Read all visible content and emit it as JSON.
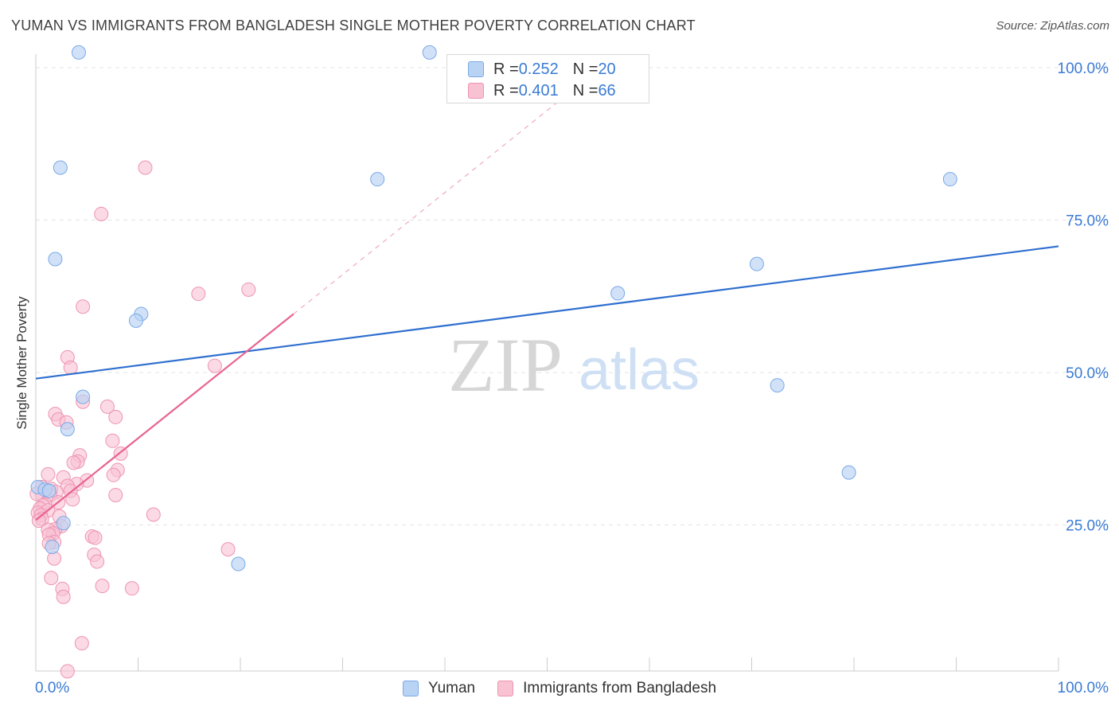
{
  "header": {
    "title": "YUMAN VS IMMIGRANTS FROM BANGLADESH SINGLE MOTHER POVERTY CORRELATION CHART",
    "source": "Source: ZipAtlas.com"
  },
  "legend": {
    "rows": [
      {
        "r_label": "R = ",
        "r_value": "0.252",
        "n_label": "N = ",
        "n_value": "20"
      },
      {
        "r_label": "R = ",
        "r_value": "0.401",
        "n_label": "N = ",
        "n_value": "66"
      }
    ]
  },
  "watermark": {
    "zip": "ZIP",
    "atlas": "atlas"
  },
  "colors": {
    "yuman_fill": "#b9d3f5",
    "yuman_stroke": "#7aa9e6",
    "yuman_line": "#2f6fcf",
    "bangla_fill": "#f9c2d3",
    "bangla_stroke": "#ee94b1",
    "bangla_line": "#e8638f",
    "tick_label": "#3a7bd5"
  },
  "chart_data": {
    "type": "scatter",
    "title": "YUMAN VS IMMIGRANTS FROM BANGLADESH SINGLE MOTHER POVERTY CORRELATION CHART",
    "xlabel": "",
    "ylabel": "Single Mother Poverty",
    "xlim": [
      0,
      100
    ],
    "ylim": [
      0,
      100
    ],
    "x_tick_labels": [
      "0.0%",
      "100.0%"
    ],
    "y_tick_labels": [
      "25.0%",
      "50.0%",
      "75.0%",
      "100.0%"
    ],
    "y_ticks": [
      25,
      50,
      75,
      100
    ],
    "grid": true,
    "legend_position": "top-center",
    "series": [
      {
        "name": "Yuman",
        "r": 0.252,
        "n": 20,
        "trend": {
          "x0": 0,
          "y0": 49.0,
          "x1": 100,
          "y1": 70.7
        },
        "points": [
          [
            4.2,
            102.5
          ],
          [
            38.5,
            102.5
          ],
          [
            2.4,
            83.6
          ],
          [
            33.4,
            81.7
          ],
          [
            89.4,
            81.7
          ],
          [
            1.9,
            68.6
          ],
          [
            56.9,
            63.0
          ],
          [
            70.5,
            67.8
          ],
          [
            10.3,
            59.6
          ],
          [
            9.8,
            58.5
          ],
          [
            4.6,
            46.0
          ],
          [
            3.1,
            40.7
          ],
          [
            72.5,
            47.9
          ],
          [
            79.5,
            33.6
          ],
          [
            0.2,
            31.2
          ],
          [
            0.9,
            30.8
          ],
          [
            1.3,
            30.6
          ],
          [
            2.7,
            25.3
          ],
          [
            1.6,
            21.4
          ],
          [
            19.8,
            18.6
          ]
        ]
      },
      {
        "name": "Immigrants from Bangladesh",
        "r": 0.401,
        "n": 66,
        "trend": {
          "x0": 0,
          "y0": 25.8,
          "x1": 25.2,
          "y1": 59.6
        },
        "trend_dashed": {
          "x0": 25.2,
          "y0": 59.6,
          "x1": 51.5,
          "y1": 95.0
        },
        "points": [
          [
            10.7,
            83.6
          ],
          [
            6.4,
            76.0
          ],
          [
            15.9,
            62.9
          ],
          [
            20.8,
            63.6
          ],
          [
            4.6,
            60.8
          ],
          [
            3.1,
            52.5
          ],
          [
            3.4,
            50.8
          ],
          [
            17.5,
            51.1
          ],
          [
            4.6,
            45.2
          ],
          [
            7.0,
            44.4
          ],
          [
            7.8,
            42.7
          ],
          [
            1.9,
            43.2
          ],
          [
            2.2,
            42.3
          ],
          [
            3.0,
            41.8
          ],
          [
            7.5,
            38.8
          ],
          [
            4.3,
            36.4
          ],
          [
            8.3,
            36.7
          ],
          [
            4.1,
            35.4
          ],
          [
            3.7,
            35.2
          ],
          [
            1.2,
            33.3
          ],
          [
            8.0,
            34.0
          ],
          [
            7.6,
            33.2
          ],
          [
            2.7,
            32.8
          ],
          [
            5.0,
            32.3
          ],
          [
            4.0,
            31.7
          ],
          [
            3.1,
            31.4
          ],
          [
            0.6,
            31.2
          ],
          [
            1.5,
            30.9
          ],
          [
            3.4,
            30.6
          ],
          [
            2.0,
            30.4
          ],
          [
            0.6,
            30.0
          ],
          [
            1.4,
            29.9
          ],
          [
            7.8,
            29.9
          ],
          [
            3.6,
            29.2
          ],
          [
            2.2,
            28.7
          ],
          [
            0.9,
            28.4
          ],
          [
            0.7,
            28.2
          ],
          [
            0.4,
            27.7
          ],
          [
            1.2,
            27.4
          ],
          [
            0.2,
            27.0
          ],
          [
            0.5,
            26.6
          ],
          [
            2.3,
            26.4
          ],
          [
            11.5,
            26.7
          ],
          [
            0.6,
            26.0
          ],
          [
            0.3,
            25.7
          ],
          [
            2.5,
            24.8
          ],
          [
            1.9,
            24.3
          ],
          [
            1.2,
            24.2
          ],
          [
            1.7,
            23.6
          ],
          [
            1.3,
            23.4
          ],
          [
            5.5,
            23.1
          ],
          [
            5.8,
            22.9
          ],
          [
            1.8,
            22.2
          ],
          [
            1.3,
            22.0
          ],
          [
            18.8,
            21.0
          ],
          [
            5.7,
            20.1
          ],
          [
            1.8,
            19.5
          ],
          [
            6.0,
            19.0
          ],
          [
            1.5,
            16.3
          ],
          [
            6.5,
            15.0
          ],
          [
            9.4,
            14.6
          ],
          [
            2.6,
            14.5
          ],
          [
            2.7,
            13.2
          ],
          [
            4.5,
            5.6
          ],
          [
            3.1,
            1.0
          ],
          [
            0.1,
            30.1
          ]
        ]
      }
    ]
  }
}
